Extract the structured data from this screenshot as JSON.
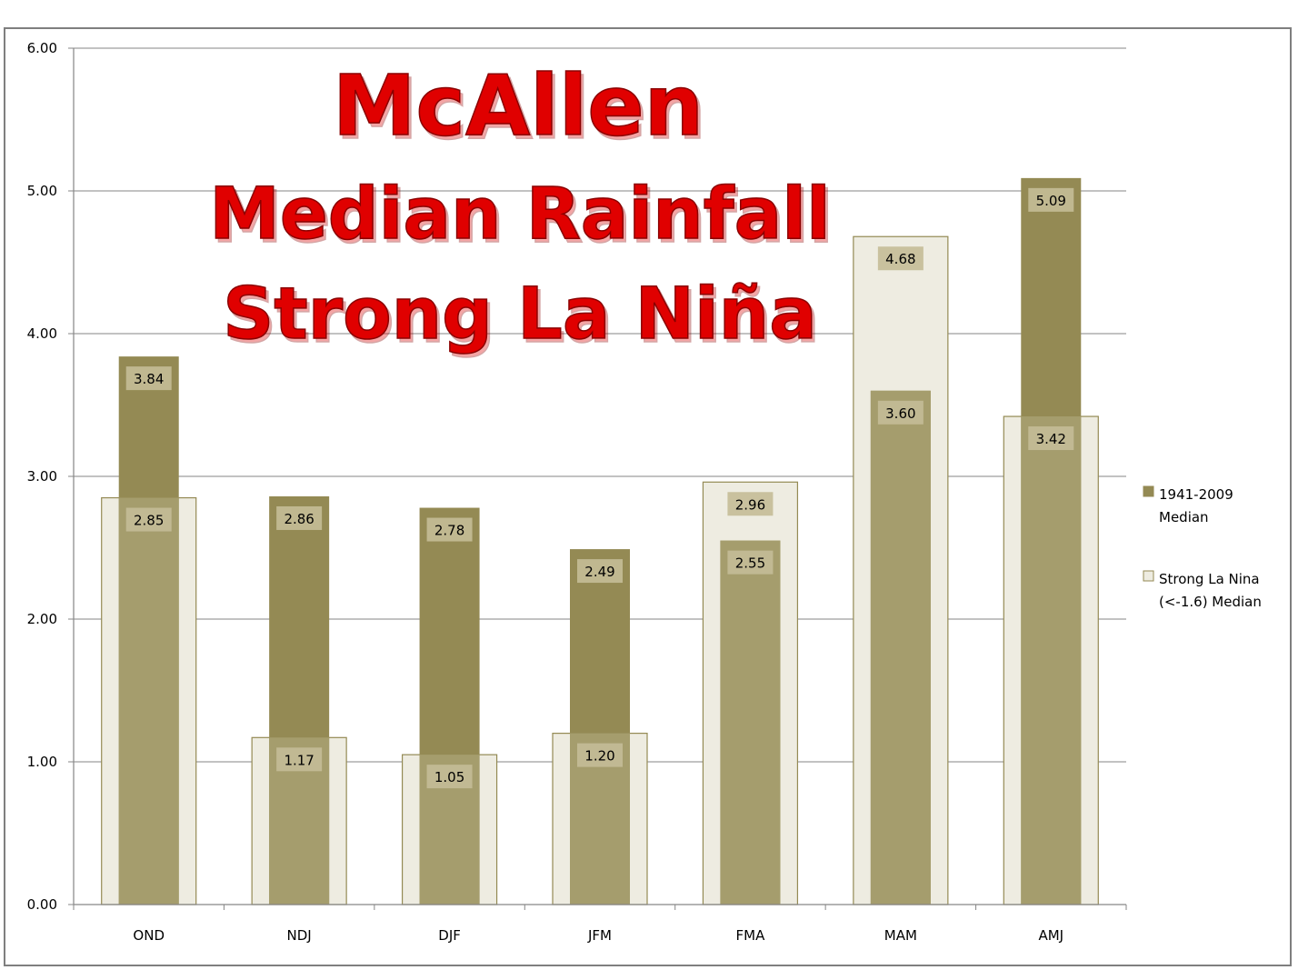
{
  "chart_data": {
    "type": "bar",
    "title": [
      "McAllen",
      "Median Rainfall",
      "Strong La Niña"
    ],
    "categories": [
      "OND",
      "NDJ",
      "DJF",
      "JFM",
      "FMA",
      "MAM",
      "AMJ"
    ],
    "series": [
      {
        "name": "1941-2009 Median",
        "values": [
          3.84,
          2.86,
          2.78,
          2.49,
          2.55,
          3.6,
          5.09
        ],
        "color": "#948a54"
      },
      {
        "name": "Strong La Nina (<-1.6) Median",
        "values": [
          2.85,
          1.17,
          1.05,
          1.2,
          2.96,
          4.68,
          3.42
        ],
        "color": "#eeece1"
      }
    ],
    "data_labels": {
      "1941-2009 Median": [
        "3.84",
        "2.86",
        "2.78",
        "2.49",
        "2.55",
        "3.60",
        "5.09"
      ],
      "Strong La Nina (<-1.6) Median": [
        "2.85",
        "1.17",
        "1.05",
        "1.20",
        "2.96",
        "4.68",
        "3.42"
      ]
    },
    "ylim": [
      0,
      6
    ],
    "yticks": [
      "0.00",
      "1.00",
      "2.00",
      "3.00",
      "4.00",
      "5.00",
      "6.00"
    ],
    "xlabel": "",
    "ylabel": "",
    "grid": true,
    "legend": {
      "position": "right",
      "entries": [
        [
          "1941-2009",
          "Median"
        ],
        [
          "Strong La Nina",
          "(<-1.6) Median"
        ]
      ]
    },
    "overlap_color": "#a59d6d",
    "title_color": "#e00000"
  }
}
